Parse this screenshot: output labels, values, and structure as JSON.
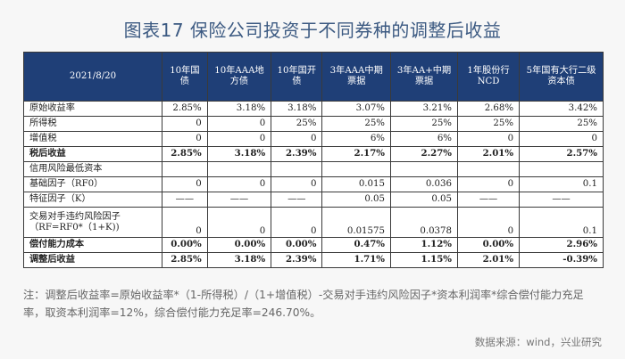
{
  "title": "图表17 保险公司投资于不同券种的调整后收益",
  "header": {
    "date": "2021/8/20",
    "columns": [
      "10年国债",
      "10年AAA地方债",
      "10年国开债",
      "3年AAA中期票据",
      "3年AA+中期票据",
      "1年股份行NCD",
      "5年国有大行二级资本债"
    ]
  },
  "rows": [
    {
      "label": "原始收益率",
      "bold": false,
      "cells": [
        "2.85%",
        "3.18%",
        "3.18%",
        "3.07%",
        "3.21%",
        "2.68%",
        "3.42%"
      ]
    },
    {
      "label": "所得税",
      "bold": false,
      "cells": [
        "0",
        "0",
        "25%",
        "25%",
        "25%",
        "25%",
        "25%"
      ]
    },
    {
      "label": "增值税",
      "bold": false,
      "cells": [
        "0",
        "0",
        "0",
        "6%",
        "6%",
        "0",
        "0"
      ]
    },
    {
      "label": "税后收益",
      "bold": true,
      "cells": [
        "2.85%",
        "3.18%",
        "2.39%",
        "2.17%",
        "2.27%",
        "2.01%",
        "2.57%"
      ]
    },
    {
      "label": "信用风险最低资本",
      "bold": false,
      "cells": [
        "",
        "",
        "",
        "",
        "",
        "",
        ""
      ]
    },
    {
      "label": "基础因子（RF0）",
      "bold": false,
      "cells": [
        "0",
        "0",
        "0",
        "0.015",
        "0.036",
        "0",
        "0.1"
      ]
    },
    {
      "label": "特征因子（K）",
      "bold": false,
      "cells": [
        "——",
        "——",
        "——",
        "0.05",
        "0.05",
        "——",
        "——"
      ]
    },
    {
      "label": "交易对手违约风险因子（RF=RF0*（1+K))",
      "bold": false,
      "tall": true,
      "cells": [
        "0",
        "0",
        "0",
        "0.01575",
        "0.0378",
        "0",
        "0.1"
      ]
    },
    {
      "label": "偿付能力成本",
      "bold": true,
      "cells": [
        "0.00%",
        "0.00%",
        "0.00%",
        "0.47%",
        "1.12%",
        "0.00%",
        "2.96%"
      ]
    },
    {
      "label": "调整后收益",
      "bold": true,
      "cells": [
        "2.85%",
        "3.18%",
        "2.39%",
        "1.71%",
        "1.15%",
        "2.01%",
        "-0.39%"
      ]
    }
  ],
  "note": "注：调整后收益率=原始收益率*（1-所得税）/（1+增值税）-交易对手违约风险因子*资本利润率*综合偿付能力充足率，取资本利润率=12%，综合偿付能力充足率=246.70%。",
  "source": "数据来源：wind，兴业研究",
  "colors": {
    "header_bg": "#1f3f77",
    "title": "#3c5a82"
  }
}
